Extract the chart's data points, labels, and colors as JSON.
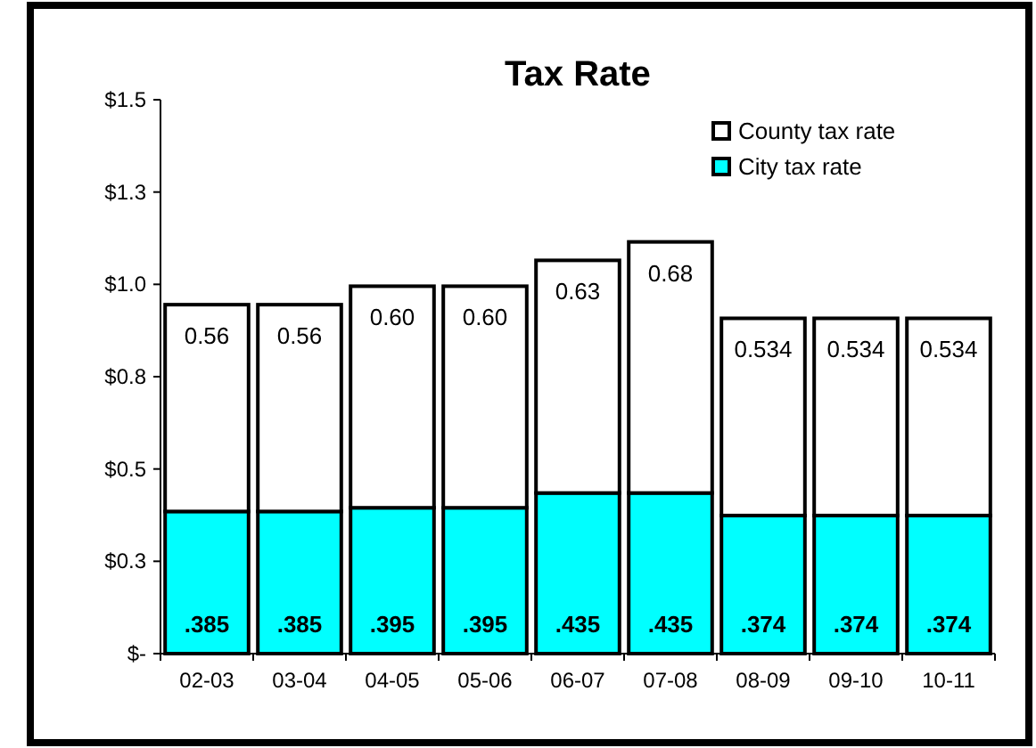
{
  "chart_data": {
    "type": "bar",
    "title": "Tax Rate",
    "stacked": true,
    "legend": "top right",
    "grid": false,
    "categories": [
      "02-03",
      "03-04",
      "04-05",
      "05-06",
      "06-07",
      "07-08",
      "08-09",
      "09-10",
      "10-11"
    ],
    "ylim": [
      0,
      1.5
    ],
    "yticks": [
      {
        "value": 0,
        "label": "$-"
      },
      {
        "value": 0.25,
        "label": "$0.3"
      },
      {
        "value": 0.5,
        "label": "$0.5"
      },
      {
        "value": 0.75,
        "label": "$0.8"
      },
      {
        "value": 1.0,
        "label": "$1.0"
      },
      {
        "value": 1.25,
        "label": "$1.3"
      },
      {
        "value": 1.5,
        "label": "$1.5"
      }
    ],
    "series": [
      {
        "name": "City tax rate",
        "color": "#00ffff",
        "values": [
          0.385,
          0.385,
          0.395,
          0.395,
          0.435,
          0.435,
          0.374,
          0.374,
          0.374
        ],
        "value_labels": [
          ".385",
          ".385",
          ".395",
          ".395",
          ".435",
          ".435",
          ".374",
          ".374",
          ".374"
        ]
      },
      {
        "name": "County tax rate",
        "color": "#ffffff",
        "values": [
          0.56,
          0.56,
          0.6,
          0.6,
          0.63,
          0.68,
          0.534,
          0.534,
          0.534
        ],
        "value_labels": [
          "0.56",
          "0.56",
          "0.60",
          "0.60",
          "0.63",
          "0.68",
          "0.534",
          "0.534",
          "0.534"
        ]
      }
    ]
  }
}
